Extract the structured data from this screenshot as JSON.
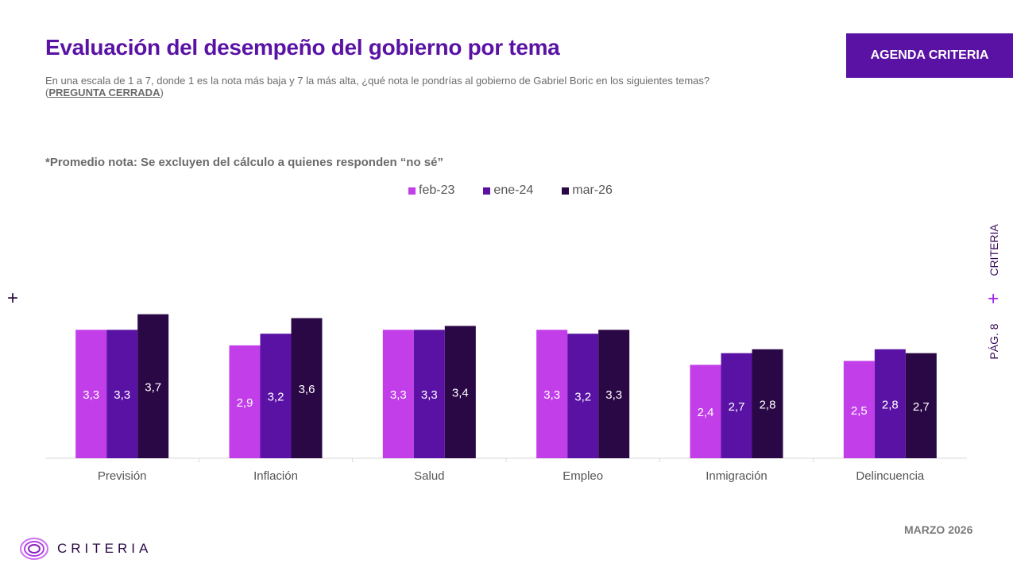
{
  "header": {
    "title": "Evaluación del desempeño del gobierno por tema",
    "subtitle": "En una escala de 1 a 7, donde 1 es la nota más baja y 7 la más alta, ¿qué nota le pondrías al gobierno de Gabriel Boric en los siguientes temas? (",
    "subtitle_link": "PREGUNTA CERRADA",
    "subtitle_end": ")",
    "badge": "AGENDA CRITERIA"
  },
  "note": "*Promedio nota: Se excluyen del cálculo a quienes responden “no sé”",
  "side": {
    "brand": "CRITERIA",
    "page": "PÁG. 8",
    "plus": "+"
  },
  "footer": {
    "date": "MARZO 2026",
    "logo": "CRITERIA"
  },
  "colors": {
    "feb-23": "#c13ee9",
    "ene-24": "#5a12a4",
    "mar-26": "#2a0845",
    "title": "#5a12a4"
  },
  "chart_data": {
    "type": "bar",
    "title": "Evaluación del desempeño del gobierno por tema",
    "categories": [
      "Previsión",
      "Inflación",
      "Salud",
      "Empleo",
      "Inmigración",
      "Delincuencia"
    ],
    "series": [
      {
        "name": "feb-23",
        "values": [
          3.3,
          2.9,
          3.3,
          3.3,
          2.4,
          2.5
        ]
      },
      {
        "name": "ene-24",
        "values": [
          3.3,
          3.2,
          3.3,
          3.2,
          2.7,
          2.8
        ]
      },
      {
        "name": "mar-26",
        "values": [
          3.7,
          3.6,
          3.4,
          3.3,
          2.8,
          2.7
        ]
      }
    ],
    "ylim": [
      0,
      7
    ],
    "legend": "top-center",
    "grid": false
  }
}
